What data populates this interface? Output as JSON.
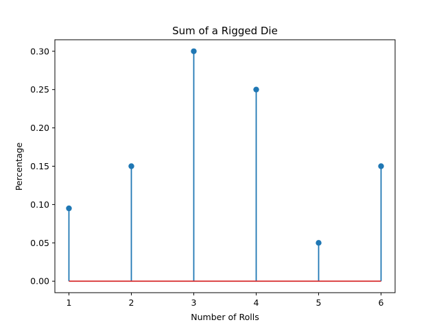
{
  "chart_data": {
    "type": "stem",
    "title": "Sum of a Rigged Die",
    "xlabel": "Number of Rolls",
    "ylabel": "Percentage",
    "x": [
      1,
      2,
      3,
      4,
      5,
      6
    ],
    "values": [
      0.095,
      0.15,
      0.3,
      0.25,
      0.05,
      0.15
    ],
    "xlim": [
      0.775,
      6.225
    ],
    "ylim": [
      -0.015,
      0.315
    ],
    "xticks": [
      1,
      2,
      3,
      4,
      5,
      6
    ],
    "xtick_labels": [
      "1",
      "2",
      "3",
      "4",
      "5",
      "6"
    ],
    "yticks": [
      0.0,
      0.05,
      0.1,
      0.15,
      0.2,
      0.25,
      0.3
    ],
    "ytick_labels": [
      "0.00",
      "0.05",
      "0.10",
      "0.15",
      "0.20",
      "0.25",
      "0.30"
    ],
    "baseline": 0,
    "grid": false,
    "colors": {
      "stem": "#1f77b4",
      "marker": "#1f77b4",
      "baseline": "#d62728",
      "axes": "#000000"
    }
  }
}
